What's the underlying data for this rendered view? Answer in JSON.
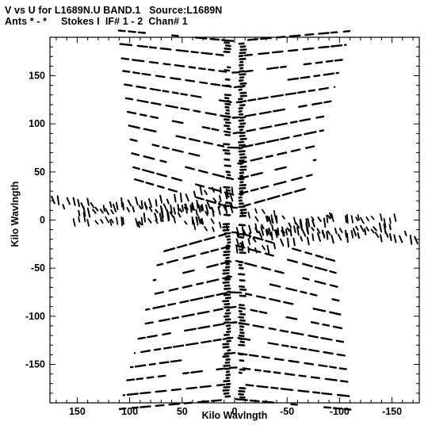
{
  "header": {
    "line1": "V vs U for L1689N.U BAND.1   Source:L1689N",
    "line2": "Ants * - *     Stokes I  IF# 1 - 2  Chan# 1"
  },
  "chart_data": {
    "type": "scatter",
    "title": "V vs U for L1689N.U BAND.1   Source:L1689N",
    "subtitle": "Ants * - *     Stokes I  IF# 1 - 2  Chan# 1",
    "xlabel": "Kilo Wavlngth",
    "ylabel": "Kilo Wavlngth",
    "xlim": [
      176,
      -176
    ],
    "ylim": [
      -190,
      190
    ],
    "x_ticks": [
      150,
      100,
      50,
      0,
      -50,
      -100,
      -150
    ],
    "x_tick_labels": [
      "150",
      "100",
      "50",
      "0",
      "-50",
      "-100",
      "-150"
    ],
    "y_ticks": [
      150,
      100,
      50,
      0,
      -50,
      -100,
      -150
    ],
    "y_tick_labels": [
      "150",
      "100",
      "50",
      "0",
      "-50",
      "-100",
      "-150"
    ],
    "grid": false,
    "legend": "none",
    "marker_color": "#000000",
    "tracks": {
      "long_baselines": [
        {
          "y0": 12,
          "slope": 0.32
        },
        {
          "y0": 26,
          "slope": 0.3
        },
        {
          "y0": 42,
          "slope": 0.28
        },
        {
          "y0": 58,
          "slope": 0.26
        },
        {
          "y0": 74,
          "slope": 0.24
        },
        {
          "y0": 90,
          "slope": 0.22
        },
        {
          "y0": 106,
          "slope": 0.2
        },
        {
          "y0": 122,
          "slope": 0.18
        },
        {
          "y0": 138,
          "slope": 0.16
        },
        {
          "y0": 153,
          "slope": 0.14
        },
        {
          "y0": 170,
          "slope": 0.12
        },
        {
          "y0": 186,
          "slope": 0.1
        }
      ],
      "short_baselines": [
        {
          "v0": 14,
          "slope": -0.2,
          "u_max": 72
        },
        {
          "v0": 22,
          "slope": -0.3,
          "u_max": 96
        },
        {
          "v0": 30,
          "slope": -0.18,
          "u_max": 150
        },
        {
          "v0": 6,
          "slope": 0.05,
          "u_max": 172
        }
      ]
    }
  }
}
